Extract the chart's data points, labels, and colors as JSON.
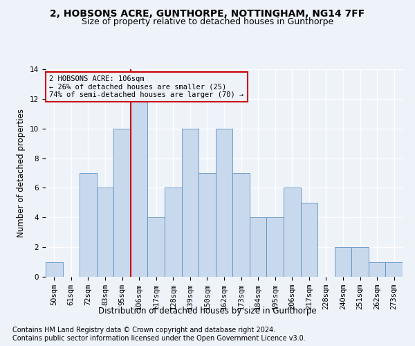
{
  "title1": "2, HOBSONS ACRE, GUNTHORPE, NOTTINGHAM, NG14 7FF",
  "title2": "Size of property relative to detached houses in Gunthorpe",
  "xlabel": "Distribution of detached houses by size in Gunthorpe",
  "ylabel": "Number of detached properties",
  "footnote1": "Contains HM Land Registry data © Crown copyright and database right 2024.",
  "footnote2": "Contains public sector information licensed under the Open Government Licence v3.0.",
  "categories": [
    "50sqm",
    "61sqm",
    "72sqm",
    "83sqm",
    "95sqm",
    "106sqm",
    "117sqm",
    "128sqm",
    "139sqm",
    "150sqm",
    "162sqm",
    "173sqm",
    "184sqm",
    "195sqm",
    "206sqm",
    "217sqm",
    "228sqm",
    "240sqm",
    "251sqm",
    "262sqm",
    "273sqm"
  ],
  "values": [
    1,
    0,
    7,
    6,
    10,
    12,
    4,
    6,
    10,
    7,
    10,
    7,
    4,
    4,
    6,
    5,
    0,
    2,
    2,
    1,
    1
  ],
  "bar_color": "#c9d9ed",
  "bar_edge_color": "#5a8fc2",
  "highlight_bar_index": 5,
  "vline_color": "#cc0000",
  "annotation_text": "2 HOBSONS ACRE: 106sqm\n← 26% of detached houses are smaller (25)\n74% of semi-detached houses are larger (70) →",
  "annotation_box_color": "#cc0000",
  "ylim": [
    0,
    14
  ],
  "yticks": [
    0,
    2,
    4,
    6,
    8,
    10,
    12,
    14
  ],
  "bg_color": "#eef2f9",
  "grid_color": "#ffffff",
  "title1_fontsize": 10,
  "title2_fontsize": 9,
  "axis_label_fontsize": 8.5,
  "tick_fontsize": 7.5,
  "footnote_fontsize": 7
}
